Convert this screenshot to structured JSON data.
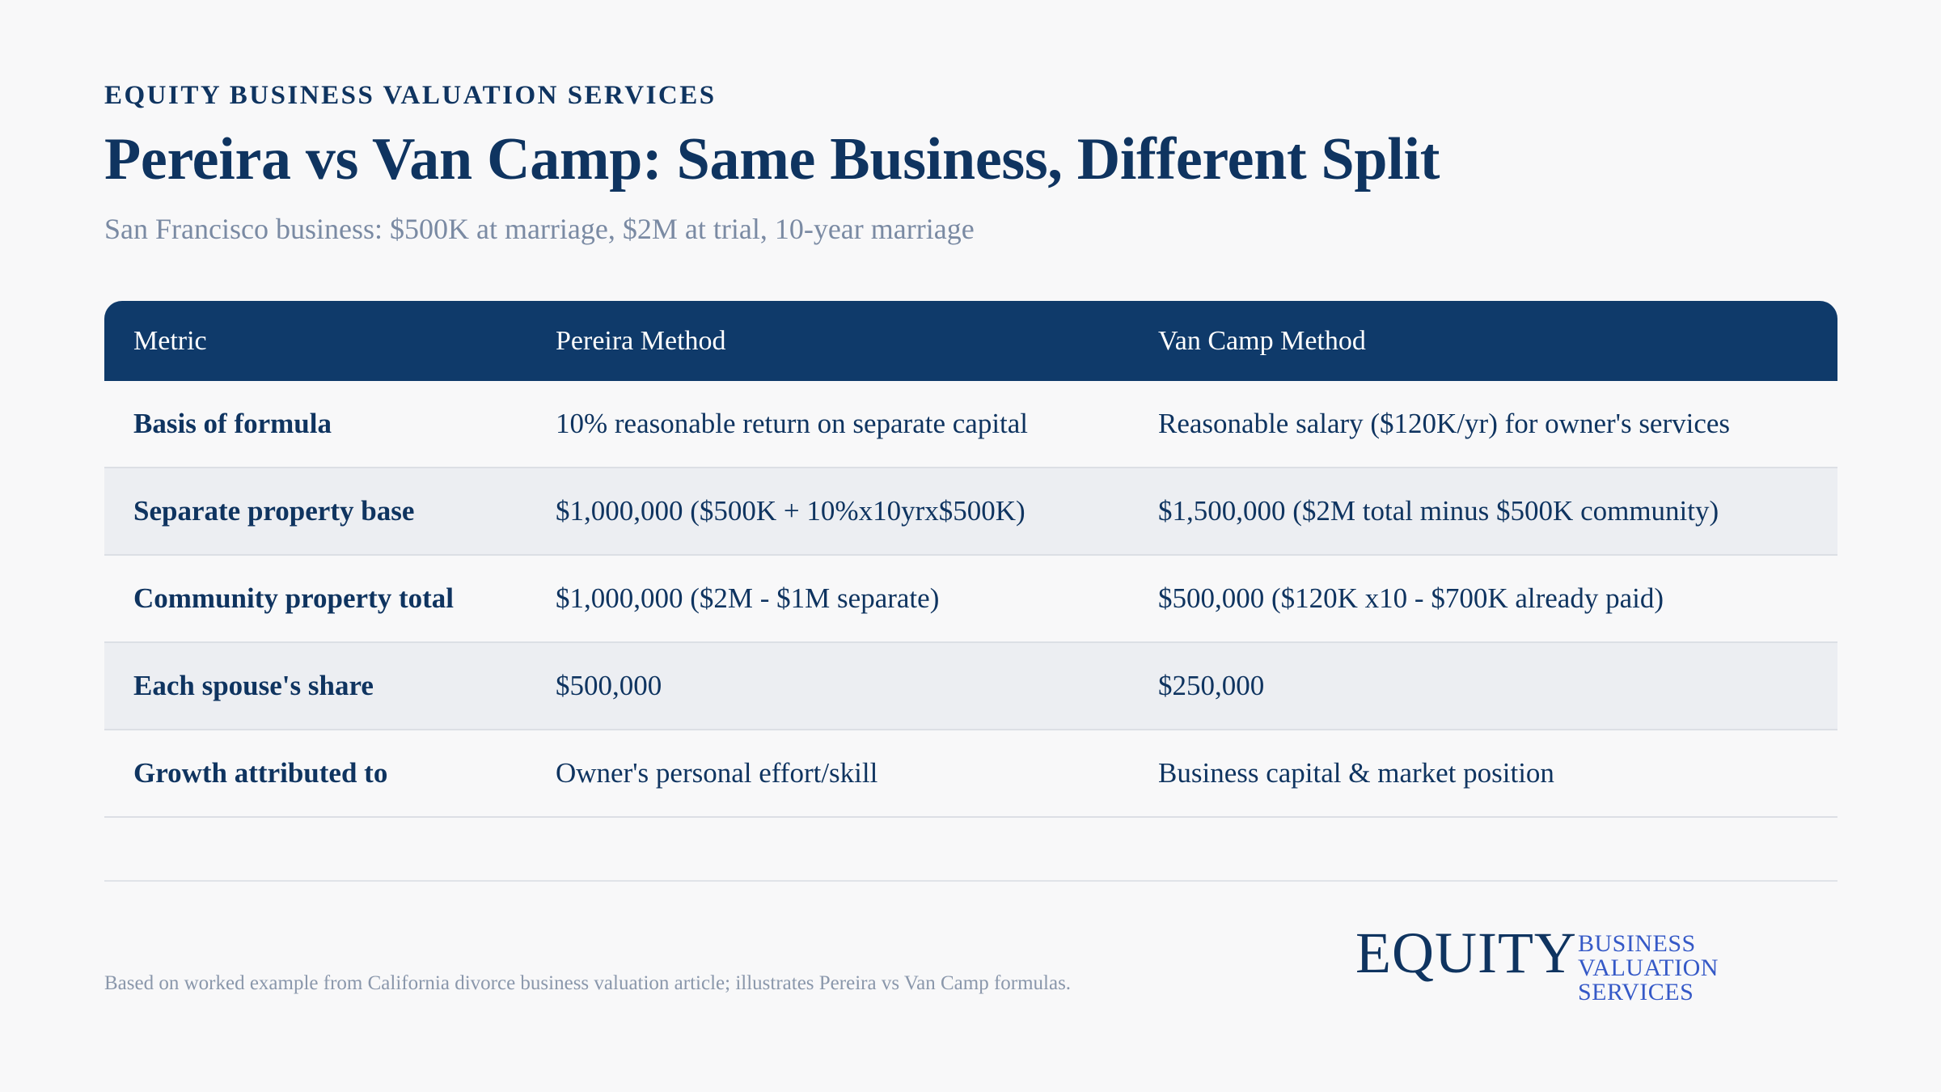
{
  "header": {
    "eyebrow": "EQUITY BUSINESS VALUATION SERVICES",
    "title": "Pereira vs Van Camp: Same Business, Different Split",
    "subtitle": "San Francisco business: $500K at marriage, $2M at trial, 10-year marriage"
  },
  "table": {
    "columns": [
      "Metric",
      "Pereira Method",
      "Van Camp Method"
    ],
    "rows": [
      {
        "metric": "Basis of formula",
        "pereira": "10% reasonable return on separate capital",
        "vancamp": "Reasonable salary ($120K/yr) for owner's services"
      },
      {
        "metric": "Separate property base",
        "pereira": "$1,000,000 ($500K + 10%x10yrx$500K)",
        "vancamp": "$1,500,000 ($2M total minus $500K community)"
      },
      {
        "metric": "Community property total",
        "pereira": "$1,000,000 ($2M - $1M separate)",
        "vancamp": "$500,000 ($120K x10 - $700K already paid)"
      },
      {
        "metric": "Each spouse's share",
        "pereira": "$500,000",
        "vancamp": "$250,000"
      },
      {
        "metric": "Growth attributed to",
        "pereira": "Owner's personal effort/skill",
        "vancamp": "Business capital & market position"
      }
    ]
  },
  "footer": {
    "footnote": "Based on worked example from California divorce business valuation article; illustrates Pereira vs Van Camp formulas.",
    "logo_word": "EQUITY",
    "logo_sub_line1": "BUSINESS VALUATION",
    "logo_sub_line2": "SERVICES"
  },
  "colors": {
    "primary": "#0f3460",
    "header_bg": "#0f3a6a",
    "alt_row": "#eceef2",
    "muted": "#7a8aa3",
    "logo_accent": "#3559c7"
  }
}
